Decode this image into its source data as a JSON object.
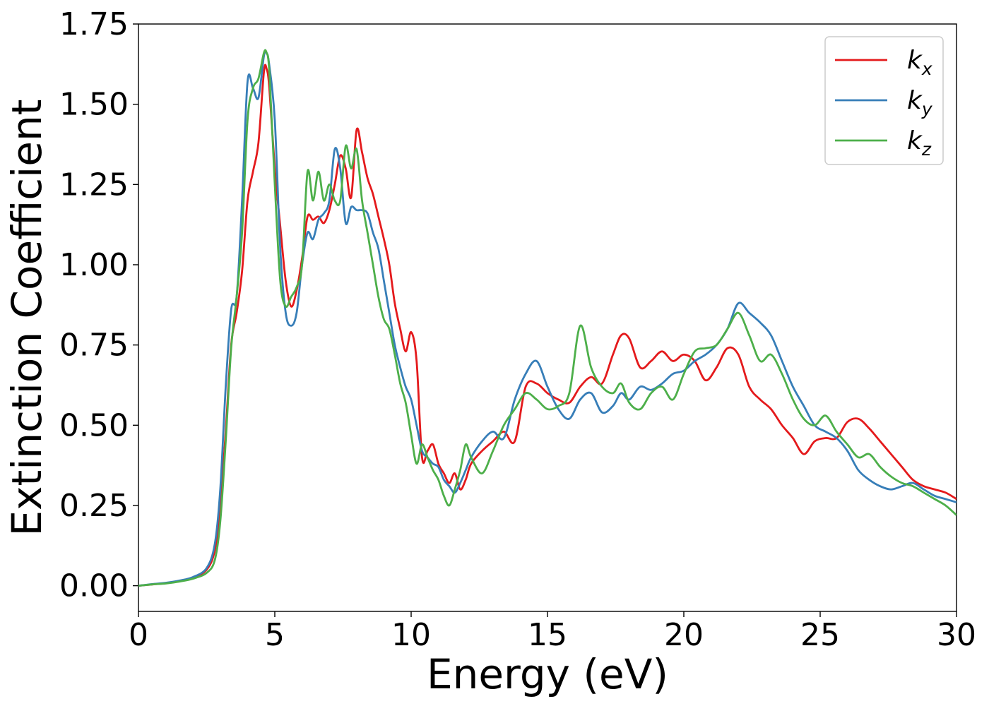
{
  "chart_data": {
    "type": "line",
    "xlabel": "Energy (eV)",
    "ylabel": "Extinction Coefficient",
    "xlim": [
      0,
      30
    ],
    "ylim": [
      -0.08,
      1.75
    ],
    "xticks": [
      "0",
      "5",
      "10",
      "15",
      "20",
      "25",
      "30"
    ],
    "yticks": [
      "0.00",
      "0.25",
      "0.50",
      "0.75",
      "1.00",
      "1.25",
      "1.50",
      "1.75"
    ],
    "grid": false,
    "legend_position": "top-right",
    "series": [
      {
        "name": "k",
        "subscript": "x",
        "color": "#e41a1c",
        "x": [
          0,
          0.5,
          1,
          1.5,
          2,
          2.5,
          2.8,
          3.0,
          3.2,
          3.4,
          3.6,
          3.8,
          4.0,
          4.2,
          4.4,
          4.6,
          4.7,
          4.8,
          5.0,
          5.2,
          5.4,
          5.6,
          5.8,
          6.0,
          6.2,
          6.4,
          6.6,
          6.8,
          7.0,
          7.2,
          7.4,
          7.6,
          7.8,
          8.0,
          8.2,
          8.4,
          8.6,
          8.8,
          9.0,
          9.2,
          9.4,
          9.6,
          9.8,
          10.0,
          10.2,
          10.4,
          10.6,
          10.8,
          11.0,
          11.2,
          11.4,
          11.6,
          11.8,
          12.0,
          12.2,
          12.6,
          13.0,
          13.4,
          13.8,
          14.2,
          14.6,
          15.0,
          15.4,
          15.8,
          16.2,
          16.6,
          17.0,
          17.4,
          17.7,
          18.0,
          18.4,
          18.8,
          19.2,
          19.6,
          20.0,
          20.4,
          20.8,
          21.2,
          21.6,
          22.0,
          22.4,
          22.8,
          23.2,
          23.6,
          24.0,
          24.4,
          24.8,
          25.2,
          25.6,
          26.0,
          26.4,
          26.8,
          27.2,
          27.6,
          28.0,
          28.4,
          28.8,
          29.2,
          29.6,
          30.0
        ],
        "y": [
          0,
          0.004,
          0.008,
          0.015,
          0.025,
          0.05,
          0.11,
          0.25,
          0.48,
          0.75,
          0.85,
          0.98,
          1.2,
          1.29,
          1.38,
          1.6,
          1.61,
          1.55,
          1.3,
          1.12,
          0.95,
          0.87,
          0.92,
          1.02,
          1.15,
          1.14,
          1.15,
          1.13,
          1.17,
          1.25,
          1.34,
          1.3,
          1.21,
          1.42,
          1.35,
          1.27,
          1.22,
          1.15,
          1.08,
          1.0,
          0.88,
          0.8,
          0.73,
          0.79,
          0.7,
          0.4,
          0.42,
          0.44,
          0.38,
          0.35,
          0.32,
          0.35,
          0.3,
          0.33,
          0.38,
          0.42,
          0.45,
          0.48,
          0.45,
          0.62,
          0.63,
          0.6,
          0.58,
          0.57,
          0.62,
          0.65,
          0.63,
          0.72,
          0.78,
          0.77,
          0.68,
          0.7,
          0.73,
          0.7,
          0.72,
          0.7,
          0.64,
          0.68,
          0.74,
          0.72,
          0.62,
          0.58,
          0.55,
          0.5,
          0.46,
          0.41,
          0.45,
          0.46,
          0.46,
          0.51,
          0.52,
          0.49,
          0.45,
          0.41,
          0.37,
          0.33,
          0.31,
          0.3,
          0.29,
          0.27
        ]
      },
      {
        "name": "k",
        "subscript": "y",
        "color": "#377eb8",
        "x": [
          0,
          0.5,
          1,
          1.5,
          2,
          2.5,
          2.8,
          3.0,
          3.2,
          3.4,
          3.6,
          3.8,
          4.0,
          4.2,
          4.4,
          4.6,
          4.7,
          4.8,
          5.0,
          5.2,
          5.4,
          5.6,
          5.8,
          6.0,
          6.2,
          6.4,
          6.6,
          6.8,
          7.0,
          7.2,
          7.4,
          7.6,
          7.8,
          8.0,
          8.2,
          8.4,
          8.6,
          8.8,
          9.0,
          9.2,
          9.4,
          9.6,
          9.8,
          10.0,
          10.2,
          10.4,
          10.6,
          10.8,
          11.0,
          11.2,
          11.4,
          11.6,
          11.8,
          12.0,
          12.2,
          12.6,
          13.0,
          13.4,
          13.8,
          14.2,
          14.6,
          15.0,
          15.4,
          15.8,
          16.2,
          16.6,
          17.0,
          17.4,
          17.7,
          18.0,
          18.4,
          18.8,
          19.2,
          19.6,
          20.0,
          20.4,
          20.8,
          21.2,
          21.6,
          22.0,
          22.4,
          22.8,
          23.2,
          23.6,
          24.0,
          24.4,
          24.8,
          25.2,
          25.6,
          26.0,
          26.4,
          26.8,
          27.2,
          27.6,
          28.0,
          28.4,
          28.8,
          29.2,
          29.6,
          30.0
        ],
        "y": [
          0,
          0.005,
          0.009,
          0.016,
          0.027,
          0.055,
          0.13,
          0.3,
          0.62,
          0.86,
          0.9,
          1.2,
          1.57,
          1.55,
          1.52,
          1.65,
          1.66,
          1.62,
          1.45,
          1.05,
          0.85,
          0.81,
          0.85,
          1.0,
          1.1,
          1.08,
          1.14,
          1.16,
          1.2,
          1.36,
          1.3,
          1.13,
          1.18,
          1.17,
          1.17,
          1.16,
          1.1,
          1.05,
          0.95,
          0.85,
          0.75,
          0.68,
          0.62,
          0.58,
          0.5,
          0.42,
          0.4,
          0.38,
          0.37,
          0.33,
          0.31,
          0.29,
          0.32,
          0.36,
          0.4,
          0.45,
          0.48,
          0.46,
          0.58,
          0.66,
          0.7,
          0.62,
          0.55,
          0.52,
          0.58,
          0.6,
          0.54,
          0.56,
          0.6,
          0.58,
          0.62,
          0.61,
          0.63,
          0.66,
          0.67,
          0.7,
          0.72,
          0.75,
          0.8,
          0.88,
          0.85,
          0.82,
          0.78,
          0.7,
          0.62,
          0.56,
          0.5,
          0.48,
          0.46,
          0.42,
          0.36,
          0.33,
          0.31,
          0.3,
          0.31,
          0.32,
          0.3,
          0.28,
          0.27,
          0.26
        ]
      },
      {
        "name": "k",
        "subscript": "z",
        "color": "#4daf4a",
        "x": [
          0,
          0.5,
          1,
          1.5,
          2,
          2.5,
          2.8,
          3.0,
          3.2,
          3.4,
          3.6,
          3.8,
          4.0,
          4.2,
          4.4,
          4.6,
          4.7,
          4.8,
          5.0,
          5.2,
          5.4,
          5.6,
          5.8,
          6.0,
          6.2,
          6.4,
          6.6,
          6.8,
          7.0,
          7.2,
          7.4,
          7.6,
          7.8,
          8.0,
          8.2,
          8.4,
          8.6,
          8.8,
          9.0,
          9.2,
          9.4,
          9.6,
          9.8,
          10.0,
          10.2,
          10.4,
          10.6,
          10.8,
          11.0,
          11.2,
          11.4,
          11.6,
          11.8,
          12.0,
          12.2,
          12.6,
          13.0,
          13.4,
          13.8,
          14.2,
          14.6,
          15.0,
          15.4,
          15.8,
          16.2,
          16.6,
          17.0,
          17.4,
          17.7,
          18.0,
          18.4,
          18.8,
          19.2,
          19.6,
          20.0,
          20.4,
          20.8,
          21.2,
          21.6,
          22.0,
          22.4,
          22.8,
          23.2,
          23.6,
          24.0,
          24.4,
          24.8,
          25.2,
          25.6,
          26.0,
          26.4,
          26.8,
          27.2,
          27.6,
          28.0,
          28.4,
          28.8,
          29.2,
          29.6,
          30.0
        ],
        "y": [
          0,
          0.004,
          0.007,
          0.013,
          0.022,
          0.04,
          0.08,
          0.2,
          0.45,
          0.74,
          0.9,
          1.1,
          1.45,
          1.55,
          1.58,
          1.66,
          1.66,
          1.6,
          1.25,
          0.95,
          0.87,
          0.9,
          0.93,
          1.0,
          1.29,
          1.2,
          1.29,
          1.2,
          1.25,
          1.2,
          1.2,
          1.37,
          1.3,
          1.36,
          1.2,
          1.1,
          1.0,
          0.9,
          0.83,
          0.8,
          0.72,
          0.63,
          0.57,
          0.47,
          0.38,
          0.44,
          0.4,
          0.36,
          0.33,
          0.28,
          0.25,
          0.3,
          0.36,
          0.44,
          0.4,
          0.35,
          0.42,
          0.5,
          0.55,
          0.6,
          0.58,
          0.55,
          0.56,
          0.6,
          0.81,
          0.68,
          0.62,
          0.6,
          0.63,
          0.57,
          0.55,
          0.6,
          0.62,
          0.58,
          0.66,
          0.73,
          0.74,
          0.75,
          0.8,
          0.85,
          0.78,
          0.7,
          0.72,
          0.66,
          0.58,
          0.52,
          0.5,
          0.53,
          0.48,
          0.44,
          0.4,
          0.41,
          0.37,
          0.34,
          0.32,
          0.31,
          0.29,
          0.27,
          0.25,
          0.22
        ]
      }
    ]
  }
}
